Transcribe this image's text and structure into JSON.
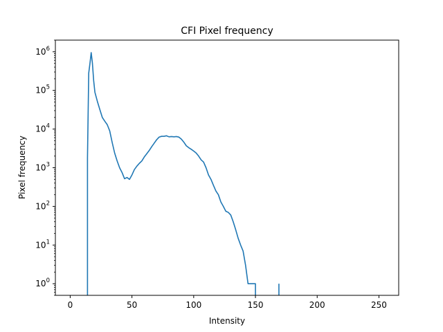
{
  "chart_data": {
    "type": "line",
    "title": "CFI Pixel frequency",
    "xlabel": "Intensity",
    "ylabel": "Pixel frequency",
    "xlim": [
      -12,
      266
    ],
    "ylim": [
      0.5,
      2000000
    ],
    "yscale": "log",
    "grid": false,
    "line_color": "#1f77b4",
    "x_ticks": [
      0,
      50,
      100,
      150,
      200,
      250
    ],
    "y_ticks": [
      {
        "value": 1,
        "base": "10",
        "exp": "0"
      },
      {
        "value": 10,
        "base": "10",
        "exp": "1"
      },
      {
        "value": 100,
        "base": "10",
        "exp": "2"
      },
      {
        "value": 1000,
        "base": "10",
        "exp": "3"
      },
      {
        "value": 10000,
        "base": "10",
        "exp": "4"
      },
      {
        "value": 100000,
        "base": "10",
        "exp": "5"
      },
      {
        "value": 1000000,
        "base": "10",
        "exp": "6"
      }
    ],
    "series": [
      {
        "segments": [
          {
            "x": [
              14,
              14,
              15,
              16,
              17,
              18,
              19,
              20,
              22,
              24,
              26,
              28,
              30,
              32,
              34,
              36,
              38,
              40,
              42,
              44,
              46,
              48,
              50,
              52,
              54,
              56,
              58,
              60,
              62,
              64,
              66,
              68,
              70,
              72,
              74,
              76,
              78,
              80,
              82,
              84,
              86,
              88,
              90,
              92,
              94,
              96,
              98,
              100,
              102,
              104,
              106,
              108,
              110,
              112,
              114,
              116,
              118,
              120,
              122,
              124,
              126,
              128,
              130,
              132,
              134,
              136,
              138,
              140,
              142,
              144,
              146,
              147,
              148,
              150,
              150
            ],
            "y": [
              0.4,
              1800,
              280000,
              500000,
              950000,
              500000,
              180000,
              90000,
              52000,
              32000,
              20000,
              16000,
              13000,
              9000,
              4500,
              2400,
              1500,
              1000,
              750,
              520,
              560,
              500,
              650,
              900,
              1100,
              1300,
              1500,
              1900,
              2300,
              2800,
              3500,
              4300,
              5300,
              6200,
              6500,
              6500,
              6700,
              6300,
              6400,
              6300,
              6400,
              6200,
              5500,
              4600,
              3700,
              3300,
              3000,
              2700,
              2400,
              2000,
              1600,
              1400,
              1000,
              650,
              500,
              350,
              250,
              200,
              130,
              100,
              75,
              70,
              60,
              40,
              25,
              15,
              10,
              7,
              3,
              1,
              1,
              1,
              1,
              1,
              0.4
            ]
          },
          {
            "x": [
              169,
              169
            ],
            "y": [
              0.4,
              1
            ]
          }
        ]
      }
    ]
  }
}
